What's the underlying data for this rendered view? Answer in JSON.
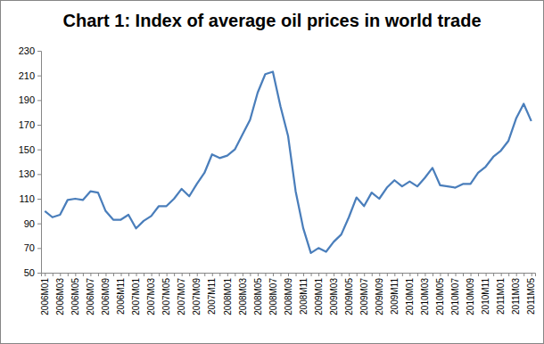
{
  "chart_data": {
    "type": "line",
    "title": "Chart 1: Index of average oil prices in world trade",
    "categories": [
      "2006M01",
      null,
      "2006M03",
      null,
      "2006M05",
      null,
      "2006M07",
      null,
      "2006M09",
      null,
      "2006M11",
      null,
      "2007M01",
      null,
      "2007M03",
      null,
      "2007M05",
      null,
      "2007M07",
      null,
      "2007M09",
      null,
      "2007M11",
      null,
      "2008M01",
      null,
      "2008M03",
      null,
      "2008M05",
      null,
      "2008M07",
      null,
      "2008M09",
      null,
      "2008M11",
      null,
      "2009M01",
      null,
      "2009M03",
      null,
      "2009M05",
      null,
      "2009M07",
      null,
      "2009M09",
      null,
      "2009M11",
      null,
      "2010M01",
      null,
      "2010M03",
      null,
      "2010M05",
      null,
      "2010M07",
      null,
      "2010M09",
      null,
      "2010M11",
      null,
      "2011M01",
      null,
      "2011M03",
      null,
      "2011M05"
    ],
    "values": [
      100,
      95,
      97,
      109,
      110,
      109,
      116,
      115,
      100,
      93,
      93,
      97,
      86,
      92,
      96,
      104,
      104,
      110,
      118,
      112,
      122,
      131,
      146,
      143,
      145,
      150,
      162,
      174,
      196,
      211,
      213,
      185,
      161,
      116,
      86,
      66,
      70,
      67,
      75,
      81,
      95,
      111,
      104,
      115,
      110,
      119,
      125,
      120,
      124,
      120,
      127,
      135,
      121,
      120,
      119,
      122,
      122,
      131,
      136,
      144,
      149,
      157,
      175,
      187,
      173
    ],
    "color": "#4a7ebb",
    "ylim": [
      50,
      230
    ],
    "yticks": [
      50,
      70,
      90,
      110,
      130,
      150,
      170,
      190,
      210,
      230
    ],
    "grid": false
  }
}
